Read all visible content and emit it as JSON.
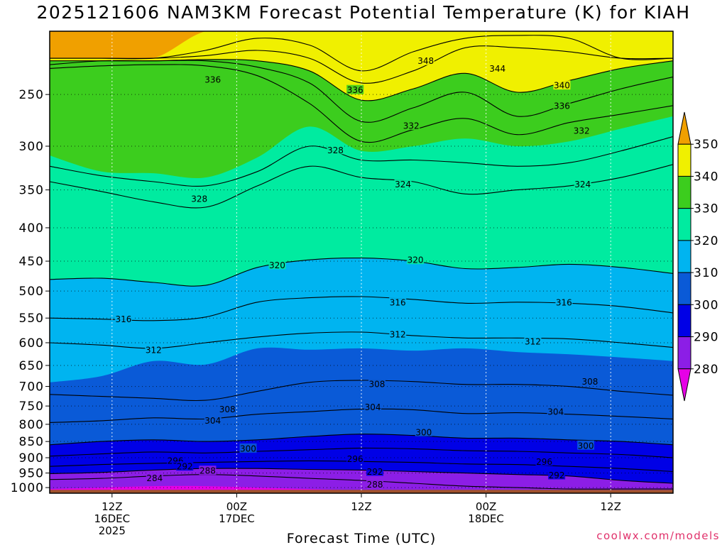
{
  "title": "2025121606 NAM3KM Forecast Potential Temperature (K) for KIAH",
  "chart_data": {
    "type": "contour",
    "title": "2025121606 NAM3KM Forecast Potential Temperature (K) for KIAH",
    "xlabel": "Forecast Time (UTC)",
    "ylabel": "",
    "y_ticks": [
      250,
      300,
      350,
      400,
      450,
      500,
      550,
      600,
      650,
      700,
      750,
      800,
      850,
      900,
      950,
      1000
    ],
    "y_range_hpa": [
      200,
      1020
    ],
    "x_ticks": [
      {
        "hour": 6,
        "label": [
          "12Z",
          "16DEC",
          "2025"
        ]
      },
      {
        "hour": 18,
        "label": [
          "00Z",
          "17DEC"
        ]
      },
      {
        "hour": 30,
        "label": [
          "12Z"
        ]
      },
      {
        "hour": 42,
        "label": [
          "00Z",
          "18DEC"
        ]
      },
      {
        "hour": 54,
        "label": [
          "12Z"
        ]
      }
    ],
    "x_range_hours": [
      0,
      60
    ],
    "grid": true,
    "colorbar": {
      "levels": [
        280,
        290,
        300,
        310,
        320,
        330,
        340,
        350
      ],
      "colors": [
        "#e600e6",
        "#8c1ee6",
        "#0000e6",
        "#0a5ad7",
        "#00b4f0",
        "#00eba0",
        "#3ccd1e",
        "#f0f000",
        "#f0a000"
      ]
    },
    "isotherm_levels": [
      284,
      288,
      292,
      296,
      300,
      304,
      308,
      312,
      316,
      320,
      324,
      328,
      332,
      336,
      340,
      344,
      348
    ],
    "isotherm_pressure_profiles": [
      {
        "theta": 350,
        "pressure_hpa": [
          220,
          220,
          220,
          200,
          200,
          200,
          200,
          200,
          200,
          200,
          200,
          200,
          200
        ]
      },
      {
        "theta": 348,
        "pressure_hpa": [
          220,
          220,
          220,
          214,
          205,
          210,
          230,
          215,
          205,
          203,
          205,
          220,
          220
        ]
      },
      {
        "theta": 344,
        "pressure_hpa": [
          220,
          220,
          220,
          218,
          214,
          220,
          240,
          230,
          212,
          212,
          215,
          220,
          220
        ]
      },
      {
        "theta": 340,
        "pressure_hpa": [
          222,
          222,
          222,
          221,
          222,
          230,
          255,
          245,
          232,
          248,
          238,
          228,
          222
        ]
      },
      {
        "theta": 336,
        "pressure_hpa": [
          225,
          222,
          222,
          222,
          227,
          240,
          275,
          262,
          248,
          270,
          258,
          245,
          235
        ]
      },
      {
        "theta": 332,
        "pressure_hpa": [
          228,
          226,
          225,
          226,
          234,
          258,
          295,
          283,
          272,
          288,
          276,
          268,
          260
        ]
      },
      {
        "theta": 330,
        "pressure_hpa": [
          310,
          328,
          330,
          335,
          312,
          280,
          305,
          300,
          292,
          300,
          295,
          282,
          270
        ]
      },
      {
        "theta": 328,
        "pressure_hpa": [
          322,
          333,
          340,
          345,
          328,
          300,
          315,
          315,
          318,
          322,
          318,
          305,
          290
        ]
      },
      {
        "theta": 324,
        "pressure_hpa": [
          340,
          352,
          365,
          372,
          345,
          322,
          335,
          340,
          355,
          350,
          345,
          335,
          320
        ]
      },
      {
        "theta": 320,
        "pressure_hpa": [
          480,
          478,
          485,
          490,
          460,
          448,
          445,
          450,
          462,
          460,
          455,
          460,
          470
        ]
      },
      {
        "theta": 316,
        "pressure_hpa": [
          550,
          552,
          555,
          548,
          520,
          512,
          510,
          515,
          522,
          520,
          522,
          528,
          540
        ]
      },
      {
        "theta": 312,
        "pressure_hpa": [
          600,
          605,
          612,
          600,
          588,
          580,
          578,
          585,
          590,
          590,
          592,
          600,
          610
        ]
      },
      {
        "theta": 310,
        "pressure_hpa": [
          690,
          675,
          640,
          648,
          612,
          615,
          612,
          617,
          612,
          620,
          625,
          632,
          640
        ]
      },
      {
        "theta": 308,
        "pressure_hpa": [
          720,
          725,
          730,
          735,
          712,
          690,
          685,
          688,
          695,
          695,
          700,
          712,
          722
        ]
      },
      {
        "theta": 304,
        "pressure_hpa": [
          795,
          790,
          782,
          785,
          772,
          765,
          758,
          760,
          770,
          768,
          772,
          778,
          785
        ]
      },
      {
        "theta": 300,
        "pressure_hpa": [
          860,
          850,
          845,
          850,
          845,
          835,
          828,
          832,
          840,
          840,
          845,
          850,
          860
        ]
      },
      {
        "theta": 296,
        "pressure_hpa": [
          895,
          888,
          882,
          885,
          880,
          875,
          870,
          872,
          878,
          880,
          885,
          890,
          900
        ]
      },
      {
        "theta": 292,
        "pressure_hpa": [
          928,
          922,
          918,
          915,
          912,
          910,
          912,
          915,
          920,
          922,
          928,
          935,
          945
        ]
      },
      {
        "theta": 288,
        "pressure_hpa": [
          952,
          948,
          940,
          935,
          935,
          938,
          940,
          945,
          950,
          955,
          960,
          975,
          985
        ]
      },
      {
        "theta": 284,
        "pressure_hpa": [
          972,
          968,
          960,
          955,
          960,
          968,
          975,
          985,
          995,
          1000,
          1005,
          1005,
          1005
        ]
      },
      {
        "theta": 280,
        "pressure_hpa": [
          1005,
          1000,
          995,
          995,
          1000,
          1005,
          1010,
          1015,
          1020,
          1020,
          1020,
          1020,
          1020
        ]
      }
    ],
    "profile_hours": [
      0,
      5,
      10,
      15,
      20,
      25,
      30,
      35,
      40,
      45,
      50,
      55,
      60
    ],
    "contour_labels": [
      {
        "text": "348",
        "hour": 36.2,
        "p": 222
      },
      {
        "text": "344",
        "hour": 43.1,
        "p": 228
      },
      {
        "text": "340",
        "hour": 49.3,
        "p": 242
      },
      {
        "text": "336",
        "hour": 15.7,
        "p": 237
      },
      {
        "text": "336",
        "hour": 29.4,
        "p": 246
      },
      {
        "text": "336",
        "hour": 49.3,
        "p": 260
      },
      {
        "text": "332",
        "hour": 34.8,
        "p": 279
      },
      {
        "text": "332",
        "hour": 51.2,
        "p": 284
      },
      {
        "text": "328",
        "hour": 27.5,
        "p": 304
      },
      {
        "text": "328",
        "hour": 14.4,
        "p": 361
      },
      {
        "text": "324",
        "hour": 34.0,
        "p": 343
      },
      {
        "text": "324",
        "hour": 51.3,
        "p": 343
      },
      {
        "text": "320",
        "hour": 21.9,
        "p": 456
      },
      {
        "text": "320",
        "hour": 35.2,
        "p": 448
      },
      {
        "text": "316",
        "hour": 7.1,
        "p": 552
      },
      {
        "text": "316",
        "hour": 33.5,
        "p": 520
      },
      {
        "text": "316",
        "hour": 49.5,
        "p": 520
      },
      {
        "text": "312",
        "hour": 10.0,
        "p": 615
      },
      {
        "text": "312",
        "hour": 33.5,
        "p": 582
      },
      {
        "text": "312",
        "hour": 46.5,
        "p": 597
      },
      {
        "text": "308",
        "hour": 31.5,
        "p": 694
      },
      {
        "text": "308",
        "hour": 52.0,
        "p": 688
      },
      {
        "text": "308",
        "hour": 17.1,
        "p": 758
      },
      {
        "text": "304",
        "hour": 31.1,
        "p": 753
      },
      {
        "text": "304",
        "hour": 48.7,
        "p": 765
      },
      {
        "text": "304",
        "hour": 15.7,
        "p": 789
      },
      {
        "text": "300",
        "hour": 36.0,
        "p": 822
      },
      {
        "text": "300",
        "hour": 51.6,
        "p": 862
      },
      {
        "text": "300",
        "hour": 19.1,
        "p": 871
      },
      {
        "text": "296",
        "hour": 29.4,
        "p": 903
      },
      {
        "text": "296",
        "hour": 47.6,
        "p": 912
      },
      {
        "text": "296",
        "hour": 12.1,
        "p": 909
      },
      {
        "text": "292",
        "hour": 13.0,
        "p": 928
      },
      {
        "text": "292",
        "hour": 31.3,
        "p": 945
      },
      {
        "text": "292",
        "hour": 48.8,
        "p": 957
      },
      {
        "text": "288",
        "hour": 15.2,
        "p": 942
      },
      {
        "text": "288",
        "hour": 31.3,
        "p": 988
      },
      {
        "text": "284",
        "hour": 10.1,
        "p": 966
      }
    ],
    "ground": {
      "surface_pressure_hpa": 1008
    }
  },
  "watermark": "coolwx.com/models"
}
